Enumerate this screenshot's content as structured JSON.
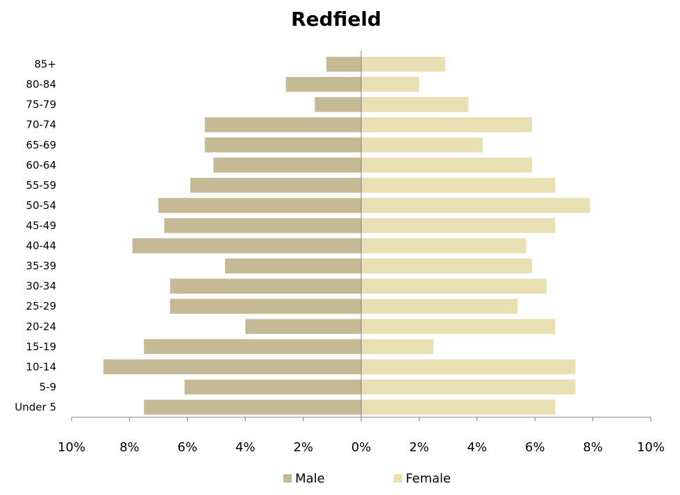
{
  "chart_data": {
    "type": "bar",
    "orientation": "horizontal",
    "title": "Redfield",
    "categories": [
      "85+",
      "80-84",
      "75-79",
      "70-74",
      "65-69",
      "60-64",
      "55-59",
      "50-54",
      "45-49",
      "40-44",
      "35-39",
      "30-34",
      "25-29",
      "20-24",
      "15-19",
      "10-14",
      "5-9",
      "Under 5"
    ],
    "series": [
      {
        "name": "Male",
        "color": "#c5b996",
        "direction": "left",
        "values": [
          1.2,
          2.6,
          1.6,
          5.4,
          5.4,
          5.1,
          5.9,
          7.0,
          6.8,
          7.9,
          4.7,
          6.6,
          6.6,
          4.0,
          7.5,
          8.9,
          6.1,
          7.5
        ]
      },
      {
        "name": "Female",
        "color": "#e8e0b3",
        "direction": "right",
        "values": [
          2.9,
          2.0,
          3.7,
          5.9,
          4.2,
          5.9,
          6.7,
          7.9,
          6.7,
          5.7,
          5.9,
          6.4,
          5.4,
          6.7,
          2.5,
          7.4,
          7.4,
          6.7
        ]
      }
    ],
    "xlim": [
      -10,
      10
    ],
    "x_ticks": [
      -10,
      -8,
      -6,
      -4,
      -2,
      0,
      2,
      4,
      6,
      8,
      10
    ],
    "x_tick_labels": [
      "10%",
      "8%",
      "6%",
      "4%",
      "2%",
      "0%",
      "2%",
      "4%",
      "6%",
      "8%",
      "10%"
    ],
    "xlabel": "",
    "ylabel": "",
    "grid": false,
    "legend_position": "bottom",
    "axis_color": "#808080"
  }
}
